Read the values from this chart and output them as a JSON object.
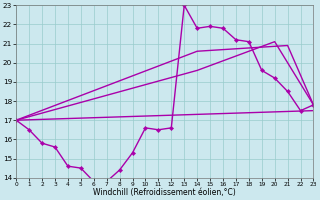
{
  "xlabel": "Windchill (Refroidissement éolien,°C)",
  "xlim": [
    0,
    23
  ],
  "ylim": [
    14,
    23
  ],
  "yticks": [
    14,
    15,
    16,
    17,
    18,
    19,
    20,
    21,
    22,
    23
  ],
  "xticks": [
    0,
    1,
    2,
    3,
    4,
    5,
    6,
    7,
    8,
    9,
    10,
    11,
    12,
    13,
    14,
    15,
    16,
    17,
    18,
    19,
    20,
    21,
    22,
    23
  ],
  "bg_color": "#cce8ee",
  "line_color": "#aa00aa",
  "grid_color": "#99cccc",
  "jagged_x": [
    0,
    1,
    2,
    3,
    4,
    5,
    6,
    7,
    8,
    9,
    10,
    11,
    12,
    13,
    14,
    15,
    16,
    17,
    18,
    19,
    20,
    21,
    22,
    23
  ],
  "jagged_y": [
    17.0,
    16.5,
    15.8,
    15.6,
    14.6,
    14.5,
    13.8,
    13.8,
    14.4,
    15.3,
    16.6,
    16.5,
    16.6,
    23.0,
    21.8,
    21.9,
    21.8,
    21.2,
    21.1,
    19.6,
    19.2,
    18.5,
    17.5,
    17.8
  ],
  "smooth_lines": [
    {
      "x": [
        0,
        23
      ],
      "y": [
        17.0,
        17.5
      ]
    },
    {
      "x": [
        0,
        14,
        20,
        23
      ],
      "y": [
        17.0,
        19.6,
        21.1,
        17.8
      ]
    },
    {
      "x": [
        0,
        14,
        21,
        23
      ],
      "y": [
        17.0,
        20.6,
        20.9,
        17.8
      ]
    }
  ]
}
